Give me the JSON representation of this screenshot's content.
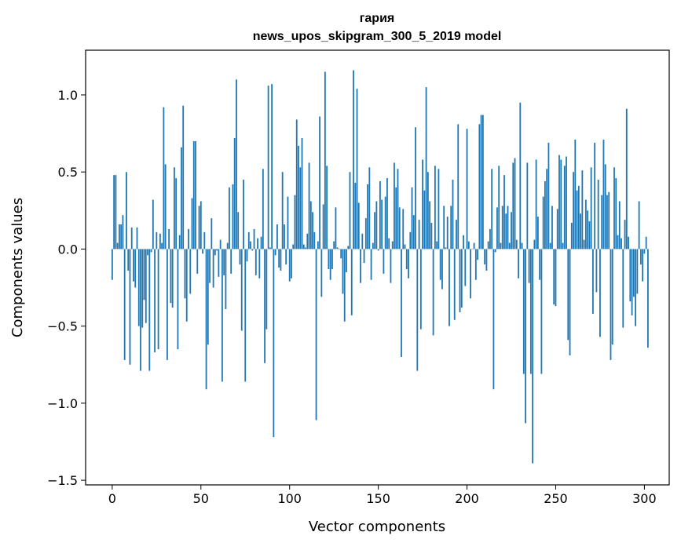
{
  "chart_data": {
    "type": "bar",
    "title_line1": "гария",
    "title_line2": "news_upos_skipgram_300_5_2019 model",
    "xlabel": "Vector components",
    "ylabel": "Components values",
    "xlim": [
      -15,
      314
    ],
    "ylim": [
      -1.53,
      1.29
    ],
    "xticks": [
      0,
      50,
      100,
      150,
      200,
      250,
      300
    ],
    "xtick_labels": [
      "0",
      "50",
      "100",
      "150",
      "200",
      "250",
      "300"
    ],
    "yticks": [
      -1.5,
      -1.0,
      -0.5,
      0.0,
      0.5,
      1.0
    ],
    "ytick_labels": [
      "−1.5",
      "−1.0",
      "−0.5",
      "0.0",
      "0.5",
      "1.0"
    ],
    "bar_color": "#1f77b4",
    "values": [
      -0.2,
      0.48,
      0.48,
      0.04,
      0.16,
      0.16,
      0.22,
      -0.72,
      0.5,
      -0.14,
      -0.75,
      0.14,
      -0.21,
      -0.25,
      0.14,
      -0.5,
      -0.79,
      -0.51,
      -0.33,
      -0.48,
      -0.04,
      -0.79,
      -0.02,
      0.32,
      -0.67,
      0.11,
      -0.65,
      0.1,
      0.04,
      0.92,
      0.55,
      -0.72,
      0.13,
      -0.35,
      -0.38,
      0.53,
      0.46,
      -0.65,
      0.09,
      0.66,
      0.93,
      -0.32,
      -0.47,
      0.13,
      -0.29,
      0.33,
      0.7,
      0.7,
      -0.16,
      0.28,
      0.31,
      -0.03,
      0.11,
      -0.91,
      -0.62,
      -0.22,
      0.2,
      -0.25,
      -0.04,
      -0.01,
      -0.18,
      0.06,
      -0.86,
      -0.17,
      -0.39,
      0.04,
      0.4,
      -0.16,
      0.42,
      0.72,
      1.1,
      0.24,
      -0.1,
      -0.53,
      0.45,
      -0.86,
      -0.08,
      0.11,
      0.05,
      -0.01,
      0.13,
      -0.17,
      0.07,
      -0.19,
      0.08,
      0.52,
      -0.74,
      -0.52,
      1.06,
      0.01,
      1.07,
      -1.22,
      -0.04,
      0.16,
      -0.12,
      -0.14,
      0.5,
      0.16,
      -0.1,
      0.34,
      -0.21,
      -0.19,
      0.03,
      0.35,
      0.84,
      0.67,
      0.53,
      0.72,
      0.03,
      0.01,
      0.1,
      0.56,
      0.31,
      0.24,
      0.11,
      -1.11,
      0.05,
      0.86,
      -0.31,
      0.29,
      1.15,
      0.54,
      -0.13,
      -0.2,
      -0.13,
      0.05,
      0.27,
      0.01,
      0.0,
      -0.06,
      -0.29,
      -0.47,
      -0.15,
      0.02,
      0.5,
      -0.43,
      1.16,
      0.43,
      1.04,
      0.3,
      -0.22,
      0.1,
      -0.09,
      0.2,
      0.42,
      0.53,
      -0.2,
      0.04,
      0.24,
      0.31,
      -0.01,
      0.44,
      0.32,
      -0.16,
      0.34,
      0.46,
      0.07,
      -0.22,
      0.05,
      0.56,
      0.4,
      0.52,
      0.27,
      -0.7,
      0.26,
      0.03,
      -0.13,
      -0.19,
      0.11,
      0.4,
      0.22,
      0.79,
      -0.79,
      0.19,
      -0.52,
      0.58,
      0.38,
      1.05,
      0.5,
      0.31,
      0.17,
      -0.56,
      0.54,
      0.05,
      0.52,
      -0.2,
      -0.26,
      0.28,
      0.01,
      0.21,
      -0.5,
      0.28,
      0.45,
      -0.46,
      0.19,
      0.81,
      -0.41,
      -0.38,
      0.09,
      -0.24,
      0.78,
      0.05,
      -0.32,
      0.0,
      0.04,
      -0.2,
      -0.07,
      0.81,
      0.87,
      0.87,
      -0.1,
      -0.14,
      0.05,
      0.13,
      0.52,
      -0.91,
      -0.02,
      0.27,
      0.54,
      0.04,
      0.28,
      0.48,
      0.23,
      0.28,
      0.04,
      0.24,
      0.56,
      0.59,
      0.06,
      -0.19,
      0.95,
      0.04,
      -0.81,
      -1.13,
      0.56,
      -0.22,
      -0.81,
      -1.39,
      0.06,
      0.58,
      0.21,
      -0.2,
      -0.81,
      0.34,
      0.44,
      0.52,
      0.69,
      0.04,
      0.28,
      -0.36,
      -0.37,
      0.26,
      0.61,
      0.58,
      0.04,
      0.54,
      0.6,
      -0.59,
      -0.69,
      0.17,
      0.5,
      0.71,
      0.38,
      0.41,
      0.23,
      0.51,
      0.06,
      0.32,
      0.25,
      0.18,
      0.53,
      -0.42,
      0.69,
      -0.28,
      0.45,
      -0.57,
      0.35,
      0.71,
      0.55,
      0.35,
      0.37,
      -0.72,
      -0.62,
      0.53,
      0.46,
      0.09,
      0.31,
      0.07,
      -0.51,
      0.19,
      0.91,
      0.08,
      -0.34,
      -0.43,
      -0.31,
      -0.5,
      -0.29,
      0.31,
      -0.1,
      -0.21,
      -0.03,
      0.08,
      -0.64
    ]
  }
}
